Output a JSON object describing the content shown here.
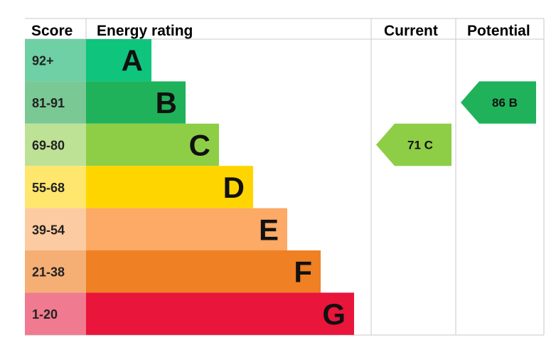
{
  "headers": {
    "score": "Score",
    "energy_rating": "Energy rating",
    "current": "Current",
    "potential": "Potential"
  },
  "chart_data": {
    "type": "bar",
    "bands": [
      {
        "letter": "A",
        "range": "92+",
        "color": "#0fc47d",
        "score_color": "#6fcfa5"
      },
      {
        "letter": "B",
        "range": "81-91",
        "color": "#1fb25a",
        "score_color": "#7ac894"
      },
      {
        "letter": "C",
        "range": "69-80",
        "color": "#8dce46",
        "score_color": "#bde296"
      },
      {
        "letter": "D",
        "range": "55-68",
        "color": "#ffd500",
        "score_color": "#ffe66d"
      },
      {
        "letter": "E",
        "range": "39-54",
        "color": "#fcaa65",
        "score_color": "#fdcba1"
      },
      {
        "letter": "F",
        "range": "21-38",
        "color": "#ef8023",
        "score_color": "#f5ae74"
      },
      {
        "letter": "G",
        "range": "1-20",
        "color": "#e9153b",
        "score_color": "#f07a8f"
      }
    ],
    "current": {
      "score": "71",
      "letter": "C",
      "color": "#8dce46"
    },
    "potential": {
      "score": "86",
      "letter": "B",
      "color": "#1fb25a"
    }
  }
}
